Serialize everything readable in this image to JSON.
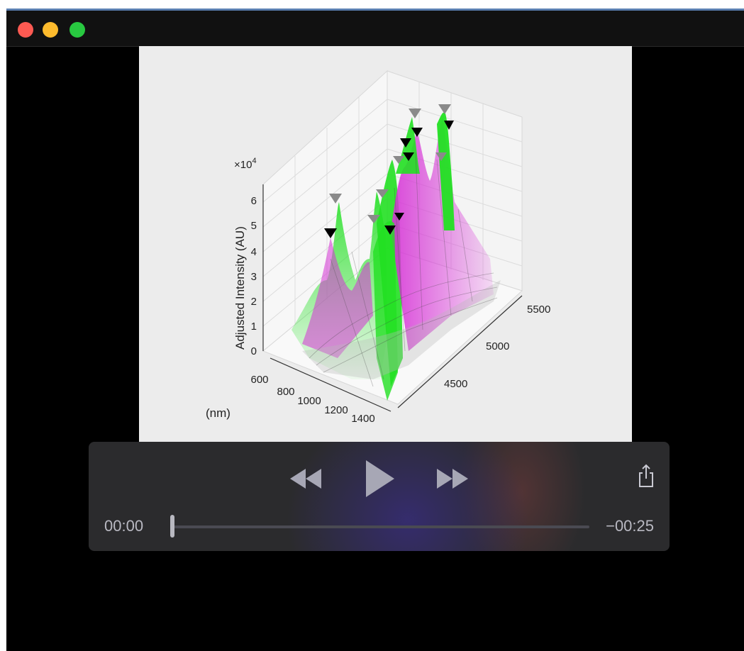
{
  "window": {
    "traffic_lights": [
      {
        "name": "close",
        "color": "#fd5a52"
      },
      {
        "name": "minimize",
        "color": "#fdbb2d"
      },
      {
        "name": "maximize",
        "color": "#28c840"
      }
    ]
  },
  "figure": {
    "exponent_label": "×10",
    "exponent_power": "4",
    "z_label": "Adjusted Intensity (AU)",
    "x_unit_label": "(nm)",
    "z_ticks": [
      "0",
      "1",
      "2",
      "3",
      "4",
      "5",
      "6"
    ],
    "x_ticks": [
      "600",
      "800",
      "1000",
      "1200",
      "1400"
    ],
    "y_ticks": [
      "4500",
      "5000",
      "5500"
    ],
    "colors": {
      "green": "#22e022",
      "magenta": "#d633d6",
      "marker_gray": "#8a8a8a",
      "marker_black": "#000000"
    }
  },
  "player": {
    "rewind_icon": "rewind-icon",
    "play_icon": "play-icon",
    "forward_icon": "fast-forward-icon",
    "share_icon": "share-icon",
    "elapsed": "00:00",
    "remaining": "−00:25",
    "progress": 0.0
  }
}
